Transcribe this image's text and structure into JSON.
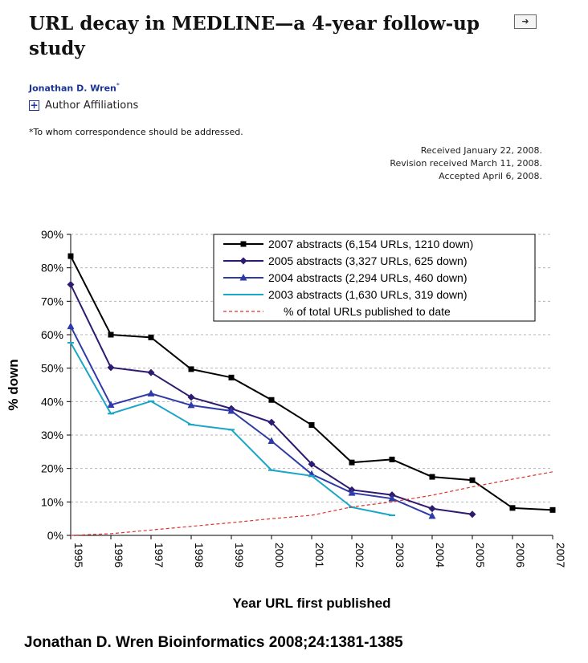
{
  "article": {
    "title": "URL decay in MEDLINE—a 4-year follow-up study",
    "author": "Jonathan D. Wren",
    "author_mark": "*",
    "affiliations_toggle": "+",
    "affiliations_label": "Author Affiliations",
    "correspondence": "*To whom correspondence should be addressed.",
    "received": "Received January 22, 2008.",
    "revised": "Revision received March 11, 2008.",
    "accepted": "Accepted April 6, 2008.",
    "nav_icon": "arrow-right-icon"
  },
  "citation": "Jonathan D. Wren Bioinformatics 2008;24:1381-1385",
  "chart_data": {
    "type": "line",
    "xlabel": "Year URL first published",
    "ylabel": "% down",
    "ylim": [
      0,
      90
    ],
    "y_ticks": [
      "0%",
      "10%",
      "20%",
      "30%",
      "40%",
      "50%",
      "60%",
      "70%",
      "80%",
      "90%"
    ],
    "x": [
      "1995",
      "1996",
      "1997",
      "1998",
      "1999",
      "2000",
      "2001",
      "2002",
      "2003",
      "2004",
      "2005",
      "2006",
      "2007"
    ],
    "grid": true,
    "legend_position": "top-right",
    "series": [
      {
        "name": "2007 abstracts (6,154 URLs, 1210 down)",
        "color": "#000000",
        "marker": "square",
        "style": "solid",
        "values": [
          83.5,
          60,
          59.2,
          49.7,
          47.2,
          40.5,
          33,
          21.8,
          22.7,
          17.5,
          16.5,
          8.2,
          7.6
        ]
      },
      {
        "name": "2005 abstracts (3,327 URLs, 625 down)",
        "color": "#2e1a6e",
        "marker": "diamond",
        "style": "solid",
        "values": [
          75,
          50.2,
          48.7,
          41.3,
          37.9,
          33.8,
          21.3,
          13.6,
          12.1,
          8,
          6.3,
          null,
          null
        ]
      },
      {
        "name": "2004 abstracts (2,294 URLs, 460 down)",
        "color": "#2e3aa8",
        "marker": "triangle",
        "style": "solid",
        "values": [
          62.5,
          39,
          42.4,
          38.9,
          37.2,
          28.2,
          18.3,
          12.7,
          11,
          5.8,
          null,
          null,
          null
        ]
      },
      {
        "name": "2003 abstracts (1,630 URLs, 319 down)",
        "color": "#1aa6c6",
        "marker": "dash",
        "style": "solid",
        "values": [
          57.6,
          36.4,
          40.1,
          33.1,
          31.6,
          19.5,
          17.8,
          8.4,
          6,
          null,
          null,
          null,
          null
        ]
      },
      {
        "name": "% of total URLs published to date",
        "color": "#e0322e",
        "marker": "none",
        "style": "dashed",
        "values": [
          0,
          0.5,
          1.6,
          2.7,
          3.8,
          5,
          6,
          8.5,
          10,
          12,
          14.5,
          16.8,
          19
        ]
      }
    ]
  }
}
